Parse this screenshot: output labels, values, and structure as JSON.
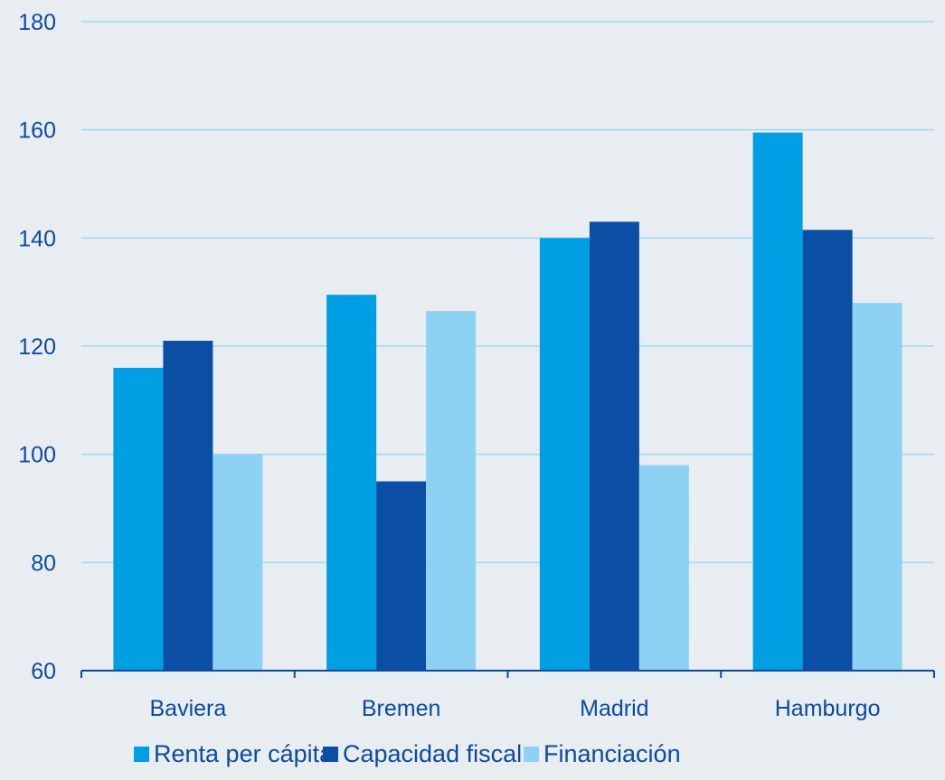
{
  "chart_data": {
    "type": "bar",
    "title": "",
    "xlabel": "",
    "ylabel": "",
    "categories": [
      "Baviera",
      "Bremen",
      "Madrid",
      "Hamburgo"
    ],
    "series": [
      {
        "name": "Renta per cápita",
        "color": "#009fe3",
        "values": [
          116,
          129.5,
          140,
          159.5
        ]
      },
      {
        "name": "Capacidad fiscal",
        "color": "#0a4fa3",
        "values": [
          121,
          95,
          143,
          141.5
        ]
      },
      {
        "name": "Financiación",
        "color": "#8dd2f3",
        "values": [
          100,
          126.5,
          98,
          128
        ]
      }
    ],
    "ylim": [
      60,
      180
    ],
    "yticks": [
      60,
      80,
      100,
      120,
      140,
      160,
      180
    ],
    "grid": true,
    "legend_position": "bottom",
    "colors": {
      "background": "#e8edf2",
      "gridline": "#9ed8f3",
      "axis": "#0d4a9e",
      "text": "#0d4a9e"
    }
  }
}
